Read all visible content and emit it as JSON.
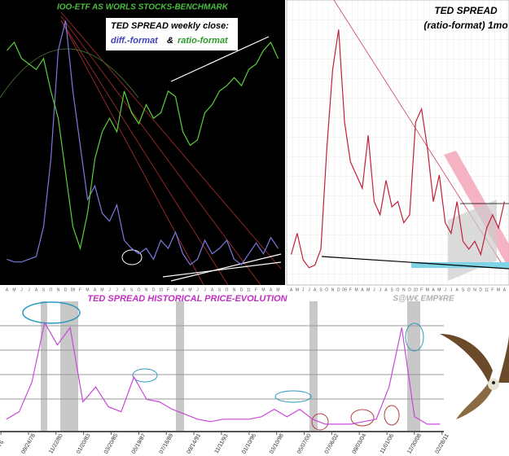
{
  "chart_data": [
    {
      "type": "line",
      "title": "IOO-ETF AS WORLS STOCKS-BENCHMARK",
      "legend_title": "TED SPREAD weekly close:",
      "legend_joiner": "&",
      "categories": [
        "A",
        "M",
        "J",
        "J",
        "A",
        "S",
        "O",
        "N",
        "D",
        "09",
        "F",
        "M",
        "A",
        "M",
        "J",
        "J",
        "A",
        "S",
        "O",
        "N",
        "D",
        "10",
        "F",
        "M",
        "A",
        "M",
        "J",
        "J",
        "A",
        "S",
        "O",
        "N",
        "D",
        "11",
        "F",
        "M",
        "A",
        "M"
      ],
      "series": [
        {
          "name": "diff.-format",
          "color": "#7a7ae0",
          "values": [
            8,
            7,
            7,
            8,
            9,
            20,
            45,
            85,
            96,
            70,
            50,
            30,
            35,
            25,
            22,
            28,
            15,
            12,
            10,
            12,
            8,
            15,
            12,
            18,
            10,
            6,
            8,
            15,
            10,
            12,
            15,
            8,
            6,
            10,
            14,
            10,
            16,
            12
          ]
        },
        {
          "name": "ratio-format",
          "color": "#5ccf3c",
          "values": [
            85,
            88,
            82,
            80,
            78,
            82,
            70,
            60,
            40,
            20,
            12,
            25,
            45,
            55,
            60,
            55,
            70,
            62,
            58,
            65,
            60,
            62,
            70,
            68,
            55,
            50,
            52,
            62,
            65,
            70,
            72,
            75,
            72,
            78,
            80,
            85,
            88,
            82
          ]
        }
      ],
      "ylim": [
        0,
        100
      ]
    },
    {
      "type": "line",
      "title": "TED SPREAD",
      "subtitle": "(ratio-format) 1mo",
      "categories": [
        "A",
        "M",
        "J",
        "J",
        "A",
        "S",
        "O",
        "N",
        "D",
        "09",
        "F",
        "M",
        "A",
        "M",
        "J",
        "J",
        "A",
        "S",
        "O",
        "N",
        "D",
        "10",
        "F",
        "M",
        "A",
        "M",
        "J",
        "J",
        "A",
        "S",
        "O",
        "N",
        "D",
        "11",
        "F",
        "M",
        "A"
      ],
      "series": [
        {
          "name": "ratio-format",
          "color": "#c0203a",
          "values": [
            10,
            18,
            8,
            5,
            6,
            12,
            50,
            80,
            95,
            60,
            45,
            40,
            35,
            55,
            30,
            25,
            38,
            28,
            30,
            22,
            25,
            60,
            65,
            50,
            30,
            40,
            22,
            18,
            30,
            15,
            12,
            15,
            10,
            20,
            25,
            20,
            30
          ]
        }
      ],
      "ylim": [
        0,
        100
      ],
      "grid": true
    },
    {
      "type": "line",
      "title": "TED SPREAD HISTORICAL PRICE-EVOLUTION",
      "color": "#c84ad8",
      "x": [
        1977,
        1978,
        1979,
        1980,
        1981,
        1982,
        1983,
        1984,
        1985,
        1986,
        1987,
        1988,
        1989,
        1990,
        1991,
        1992,
        1993,
        1994,
        1995,
        1996,
        1997,
        1998,
        1999,
        2000,
        2001,
        2002,
        2003,
        2004,
        2005,
        2006,
        2007,
        2008,
        2009,
        2010,
        2011
      ],
      "values": [
        0.5,
        0.8,
        2.0,
        4.4,
        3.5,
        4.2,
        1.2,
        1.8,
        1.0,
        0.8,
        2.2,
        1.3,
        1.2,
        0.9,
        0.7,
        0.5,
        0.4,
        0.5,
        0.5,
        0.5,
        0.6,
        0.9,
        0.6,
        0.9,
        0.5,
        0.3,
        0.3,
        0.3,
        0.4,
        0.5,
        1.8,
        4.2,
        0.6,
        0.3,
        0.3
      ],
      "xlim": [
        1976.5,
        2011.3
      ],
      "ylim": [
        0,
        5
      ],
      "grid": true,
      "xticks": [
        {
          "value": 1976.57,
          "label": "76"
        },
        {
          "value": 1978.73,
          "label": "09/24/78"
        },
        {
          "value": 1980.89,
          "label": "11/22/80"
        },
        {
          "value": 1983.05,
          "label": "01/20/83"
        },
        {
          "value": 1985.21,
          "label": "03/20/85"
        },
        {
          "value": 1987.38,
          "label": "05/19/87"
        },
        {
          "value": 1989.54,
          "label": "07/16/89"
        },
        {
          "value": 1991.7,
          "label": "09/14/91"
        },
        {
          "value": 1993.86,
          "label": "11/11/93"
        },
        {
          "value": 1996.03,
          "label": "01/10/96"
        },
        {
          "value": 1998.19,
          "label": "03/10/98"
        },
        {
          "value": 2000.35,
          "label": "05/07/00"
        },
        {
          "value": 2002.51,
          "label": "07/06/02"
        },
        {
          "value": 2004.67,
          "label": "09/03/04"
        },
        {
          "value": 2006.84,
          "label": "11/01/06"
        },
        {
          "value": 2008.99,
          "label": "12/30/08"
        },
        {
          "value": 2011.16,
          "label": "02/28/11"
        }
      ]
    }
  ],
  "watermark": "S@W€ EMP¥RE"
}
